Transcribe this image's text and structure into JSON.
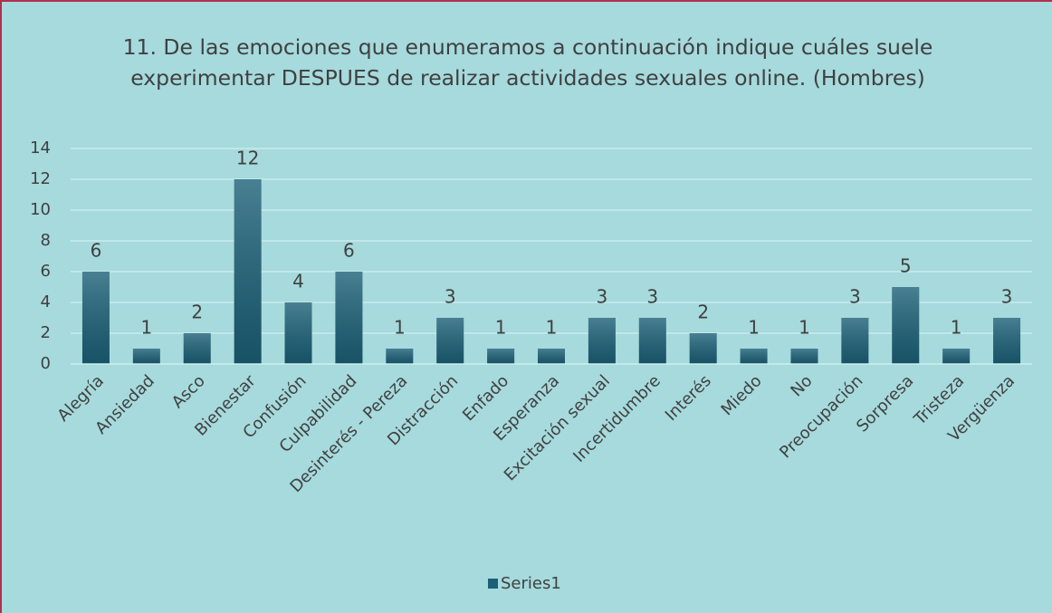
{
  "chart_data": {
    "type": "bar",
    "title": "11.  De las emociones que enumeramos a continuación  indique cuáles suele experimentar DESPUES de realizar actividades sexuales online. (Hombres)",
    "categories": [
      "Alegría",
      "Ansiedad",
      "Asco",
      "Bienestar",
      "Confusión",
      "Culpabilidad",
      "Desinterés - Pereza",
      "Distracción",
      "Enfado",
      "Esperanza",
      "Excitación sexual",
      "Incertidumbre",
      "Interés",
      "Miedo",
      "No",
      "Preocupación",
      "Sorpresa",
      "Tristeza",
      "Vergüenza"
    ],
    "series": [
      {
        "name": "Series1",
        "color": "#1b6077",
        "values": [
          6,
          1,
          2,
          12,
          4,
          6,
          1,
          3,
          1,
          1,
          3,
          3,
          2,
          1,
          1,
          3,
          5,
          1,
          3
        ]
      }
    ],
    "ylim": [
      0,
      14
    ],
    "yticks": [
      0,
      2,
      4,
      6,
      8,
      10,
      12,
      14
    ],
    "grid": true,
    "legend": "bottom"
  }
}
